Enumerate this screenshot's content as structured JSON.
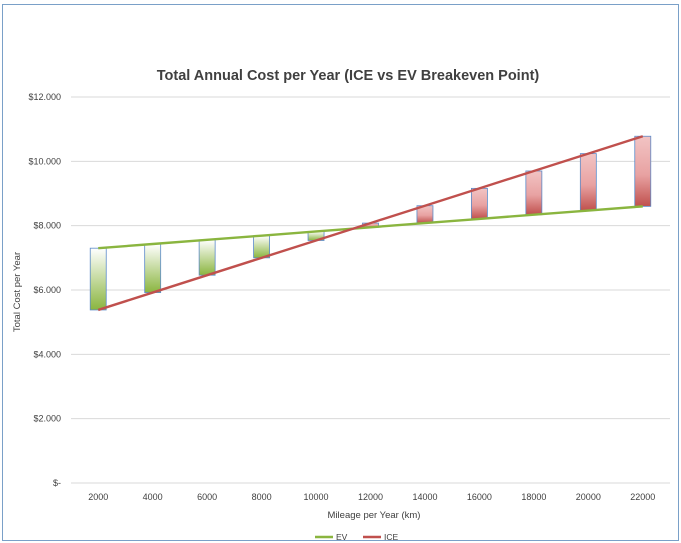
{
  "chart_data": {
    "type": "line",
    "title": "Total Annual Cost per Year (ICE vs EV Breakeven Point)",
    "xlabel": "Mileage per Year (km)",
    "ylabel": "Total Cost per Year",
    "categories": [
      "2000",
      "4000",
      "6000",
      "8000",
      "10000",
      "12000",
      "14000",
      "16000",
      "18000",
      "20000",
      "22000"
    ],
    "series": [
      {
        "name": "EV",
        "color": "#8ab53f",
        "values": [
          7300,
          7430,
          7560,
          7690,
          7820,
          7950,
          8080,
          8210,
          8340,
          8470,
          8600
        ]
      },
      {
        "name": "ICE",
        "color": "#c0504d",
        "values": [
          5380,
          5920,
          6460,
          7000,
          7540,
          8080,
          8620,
          9160,
          9700,
          10240,
          10780
        ]
      }
    ],
    "ylim": [
      0,
      12000
    ],
    "yticks": [
      "$-",
      "$2.000",
      "$4.000",
      "$6.000",
      "$8.000",
      "$10.000",
      "$12.000"
    ],
    "up_down_bars": true,
    "bar_colors": {
      "ev_higher": "#8ab53f",
      "ice_higher": "#c0504d",
      "outline": "#5b8ac9"
    },
    "grid": true,
    "legend": "bottom"
  }
}
